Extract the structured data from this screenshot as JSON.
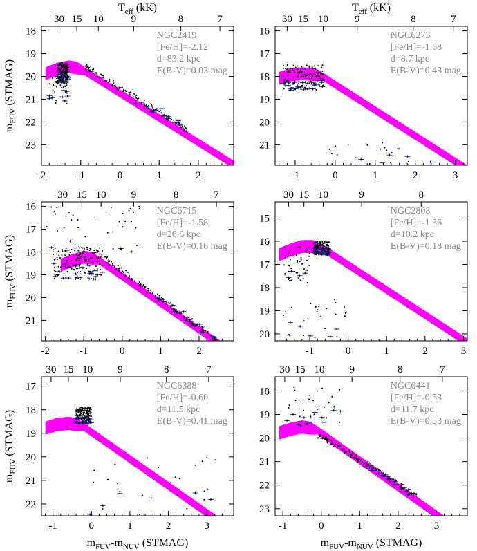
{
  "figure": {
    "xlabel_main": "m",
    "xlabel_sub1": "FUV",
    "xlabel_mid": "-m",
    "xlabel_sub2": "NUV",
    "xlabel_tail": " (STMAG)",
    "ylabel_main": "m",
    "ylabel_sub": "FUV",
    "ylabel_tail": " (STMAG)",
    "teff_label_main": "T",
    "teff_label_sub": "eff",
    "teff_label_tail": " (kK)"
  },
  "colors": {
    "band": "#ff00ff",
    "points": "#000000",
    "errorbars": "#1f2a9c",
    "annotation": "#8a8a8a"
  },
  "chart_data": [
    {
      "type": "scatter",
      "cluster": "NGC2419",
      "feh": "[Fe/H]=-2.12",
      "distance": "d=83.2 kpc",
      "ebv": "E(B-V)=0.03 mag",
      "xlim": [
        -2.0,
        2.9
      ],
      "ylim": [
        23.9,
        17.8
      ],
      "xticks": [
        "-2",
        "-1",
        "0",
        "1",
        "2"
      ],
      "yticks": [
        "18",
        "19",
        "20",
        "21",
        "22",
        "23"
      ],
      "teff_ticks": [
        {
          "label": "30",
          "x": -1.55
        },
        {
          "label": "15",
          "x": -1.1
        },
        {
          "label": "10",
          "x": -0.55
        },
        {
          "label": "9",
          "x": 0.35
        },
        {
          "label": "8",
          "x": 1.55
        },
        {
          "label": "7",
          "x": 2.55
        }
      ],
      "model_band": {
        "hb_x": [
          -1.9,
          -1.6,
          -1.3,
          -1.1,
          -0.9
        ],
        "hb_y_bright": [
          19.6,
          19.4,
          19.3,
          19.35,
          19.6
        ],
        "slope_y_bright": [
          [
            -0.9,
            19.6
          ],
          [
            2.9,
            23.7
          ]
        ],
        "thickness": 0.35
      },
      "points_summary": {
        "hb_cluster": {
          "x": [
            -1.6,
            -1.3
          ],
          "y": [
            19.4,
            20.3
          ]
        },
        "blue_tail": {
          "x": [
            -1.8,
            -1.3
          ],
          "y": [
            19.8,
            21.2
          ]
        },
        "sequence": {
          "x": [
            -0.9,
            1.8
          ],
          "y": [
            19.6,
            22.4
          ]
        }
      }
    },
    {
      "type": "scatter",
      "cluster": "NGC6273",
      "feh": "[Fe/H]=-1.68",
      "distance": "d=8.7 kpc",
      "ebv": "E(B-V)=0.43 mag",
      "xlim": [
        -1.5,
        3.3
      ],
      "ylim": [
        21.9,
        15.8
      ],
      "xticks": [
        "-1",
        "0",
        "1",
        "2",
        "3"
      ],
      "yticks": [
        "16",
        "17",
        "18",
        "19",
        "20",
        "21"
      ],
      "teff_ticks": [
        {
          "label": "30",
          "x": -1.2
        },
        {
          "label": "15",
          "x": -0.8
        },
        {
          "label": "10",
          "x": -0.3
        },
        {
          "label": "9",
          "x": 0.55
        },
        {
          "label": "8",
          "x": 1.95
        },
        {
          "label": "7",
          "x": 2.95
        }
      ],
      "model_band": {
        "hb_x": [
          -1.4,
          -1.1,
          -0.8,
          -0.5,
          -0.3
        ],
        "hb_y_bright": [
          17.8,
          17.65,
          17.6,
          17.65,
          17.85
        ],
        "slope_y_bright": [
          [
            -0.3,
            17.85
          ],
          [
            3.3,
            21.9
          ]
        ],
        "thickness": 0.35
      },
      "points_summary": {
        "hb_cluster": {
          "x": [
            -1.3,
            -0.3
          ],
          "y": [
            17.5,
            18.6
          ]
        },
        "faint_scatter": {
          "x": [
            -0.2,
            2.6
          ],
          "y": [
            20.9,
            21.9
          ]
        }
      }
    },
    {
      "type": "scatter",
      "cluster": "NGC6715",
      "feh": "[Fe/H]=-1.58",
      "distance": "d=26.8 kpc",
      "ebv": "E(B-V)=0.16 mag",
      "xlim": [
        -2.1,
        2.9
      ],
      "ylim": [
        21.9,
        15.8
      ],
      "xticks": [
        "-2",
        "-1",
        "0",
        "1",
        "2"
      ],
      "yticks": [
        "16",
        "17",
        "18",
        "19",
        "20",
        "21"
      ],
      "teff_ticks": [
        {
          "label": "30",
          "x": -1.55
        },
        {
          "label": "15",
          "x": -1.05
        },
        {
          "label": "10",
          "x": -0.55
        },
        {
          "label": "9",
          "x": 0.3
        },
        {
          "label": "8",
          "x": 1.4
        },
        {
          "label": "7",
          "x": 2.45
        }
      ],
      "model_band": {
        "hb_x": [
          -1.6,
          -1.3,
          -1.0,
          -0.8,
          -0.6
        ],
        "hb_y_bright": [
          18.3,
          18.1,
          17.95,
          18.0,
          18.2
        ],
        "slope_y_bright": [
          [
            -0.6,
            18.2
          ],
          [
            2.9,
            22.3
          ]
        ],
        "thickness": 0.35
      },
      "points_summary": {
        "hb_cluster": {
          "x": [
            -1.8,
            -0.5
          ],
          "y": [
            17.8,
            19.2
          ]
        },
        "sequence": {
          "x": [
            -0.6,
            2.5
          ],
          "y": [
            18.1,
            21.9
          ]
        },
        "bright_scatter": {
          "x": [
            -2.0,
            0.6
          ],
          "y": [
            16.0,
            18.0
          ]
        }
      }
    },
    {
      "type": "scatter",
      "cluster": "NGC2808",
      "feh": "[Fe/H]=-1.36",
      "distance": "d=10.2 kpc",
      "ebv": "E(B-V)=0.18 mag",
      "xlim": [
        -1.9,
        3.1
      ],
      "ylim": [
        20.3,
        14.3
      ],
      "xticks": [
        "-1",
        "0",
        "1",
        "2",
        "3"
      ],
      "yticks": [
        "15",
        "16",
        "17",
        "18",
        "19",
        "20"
      ],
      "teff_ticks": [
        {
          "label": "30",
          "x": -1.55
        },
        {
          "label": "15",
          "x": -1.15
        },
        {
          "label": "10",
          "x": -0.65
        },
        {
          "label": "9",
          "x": 0.35
        },
        {
          "label": "8",
          "x": 1.9
        }
      ],
      "model_band": {
        "hb_x": [
          -1.8,
          -1.5,
          -1.2,
          -0.9,
          -0.6
        ],
        "hb_y_bright": [
          16.3,
          16.1,
          15.95,
          15.95,
          16.2
        ],
        "slope_y_bright": [
          [
            -0.6,
            16.2
          ],
          [
            3.1,
            20.2
          ]
        ],
        "thickness": 0.35
      },
      "points_summary": {
        "hb_cluster": {
          "x": [
            -0.9,
            -0.5
          ],
          "y": [
            16.0,
            16.6
          ]
        },
        "blue_tail": {
          "x": [
            -1.7,
            -1.0
          ],
          "y": [
            16.2,
            17.8
          ]
        },
        "faint_scatter": {
          "x": [
            -1.8,
            0.0
          ],
          "y": [
            18.5,
            20.2
          ]
        }
      }
    },
    {
      "type": "scatter",
      "cluster": "NGC6388",
      "feh": "[Fe/H]=-0.60",
      "distance": "d=11.5 kpc",
      "ebv": "E(B-V)=0.41 mag",
      "xlim": [
        -1.3,
        3.7
      ],
      "ylim": [
        22.5,
        16.6
      ],
      "xticks": [
        "-1",
        "0",
        "1",
        "2",
        "3"
      ],
      "yticks": [
        "17",
        "18",
        "19",
        "20",
        "21",
        "22"
      ],
      "teff_ticks": [
        {
          "label": "30",
          "x": -1.05
        },
        {
          "label": "15",
          "x": -0.6
        },
        {
          "label": "10",
          "x": -0.1
        },
        {
          "label": "9",
          "x": 0.75
        },
        {
          "label": "8",
          "x": 1.95
        },
        {
          "label": "7",
          "x": 3.05
        }
      ],
      "model_band": {
        "hb_x": [
          -1.2,
          -0.9,
          -0.6,
          -0.4,
          -0.2
        ],
        "hb_y_bright": [
          18.5,
          18.35,
          18.3,
          18.35,
          18.55
        ],
        "slope_y_bright": [
          [
            -0.2,
            18.55
          ],
          [
            3.7,
            23.0
          ]
        ],
        "thickness": 0.35
      },
      "points_summary": {
        "hb_cluster": {
          "x": [
            -0.4,
            0.0
          ],
          "y": [
            17.9,
            18.6
          ]
        },
        "faint_scatter": {
          "x": [
            -0.2,
            3.4
          ],
          "y": [
            20.0,
            22.5
          ]
        }
      }
    },
    {
      "type": "scatter",
      "cluster": "NGC6441",
      "feh": "[Fe/H]=-0.53",
      "distance": "d=11.7 kpc",
      "ebv": "E(B-V)=0.53 mag",
      "xlim": [
        -1.2,
        3.8
      ],
      "ylim": [
        23.3,
        17.4
      ],
      "xticks": [
        "-1",
        "0",
        "1",
        "2",
        "3"
      ],
      "yticks": [
        "18",
        "19",
        "20",
        "21",
        "22",
        "23"
      ],
      "teff_ticks": [
        {
          "label": "30",
          "x": -0.95
        },
        {
          "label": "15",
          "x": -0.55
        },
        {
          "label": "10",
          "x": -0.05
        },
        {
          "label": "9",
          "x": 0.8
        },
        {
          "label": "8",
          "x": 2.05
        },
        {
          "label": "7",
          "x": 3.15
        }
      ],
      "model_band": {
        "hb_x": [
          -1.1,
          -0.8,
          -0.5,
          -0.3,
          -0.1
        ],
        "hb_y_bright": [
          19.5,
          19.35,
          19.25,
          19.3,
          19.5
        ],
        "slope_y_bright": [
          [
            -0.1,
            19.5
          ],
          [
            3.8,
            24.0
          ]
        ],
        "thickness": 0.35
      },
      "points_summary": {
        "sequence": {
          "x": [
            -0.1,
            2.5
          ],
          "y": [
            19.8,
            22.5
          ]
        },
        "bright_scatter": {
          "x": [
            -0.9,
            0.5
          ],
          "y": [
            17.8,
            19.5
          ]
        }
      }
    }
  ]
}
